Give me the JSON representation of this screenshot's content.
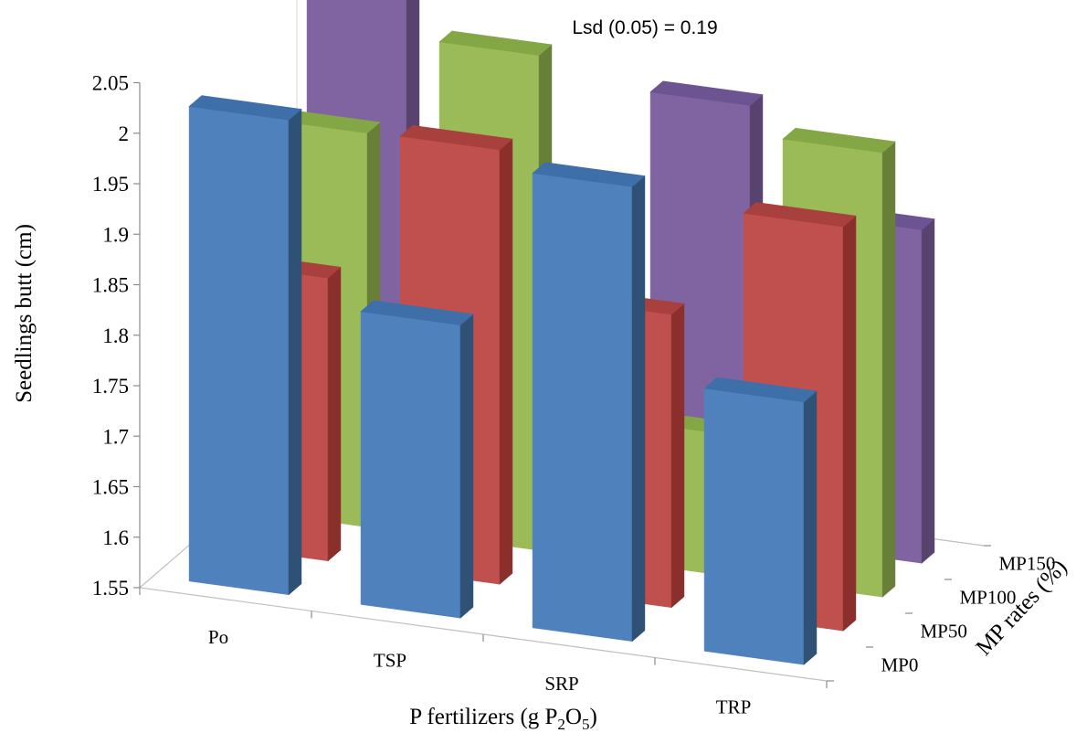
{
  "chart_data": {
    "type": "bar",
    "subtype": "3d-column",
    "title": "",
    "annotation": "Lsd (0.05) = 0.19",
    "ylabel": "Seedlings butt (cm)",
    "xlabel_parts": {
      "main": "P fertilizers (g P",
      "sub1": "2",
      "mid": "O",
      "sub2": "5",
      "end": ")"
    },
    "zlabel": "MP rates (%)",
    "ylim": [
      1.55,
      2.05
    ],
    "y_ticks": [
      "1.55",
      "1.6",
      "1.65",
      "1.7",
      "1.75",
      "1.8",
      "1.85",
      "1.9",
      "1.95",
      "2",
      "2.05"
    ],
    "categories": [
      "Po",
      "TSP",
      "SRP",
      "TRP"
    ],
    "grid": false,
    "series": [
      {
        "name": "MP0",
        "colors": {
          "front": "#4F81BD",
          "side": "#2F5176",
          "top": "#3E6FA8"
        },
        "values": [
          2.02,
          1.84,
          2.0,
          1.81
        ]
      },
      {
        "name": "MP50",
        "colors": {
          "front": "#C0504D",
          "side": "#8B2F2D",
          "top": "#A8403D"
        },
        "values": [
          1.83,
          1.98,
          1.84,
          1.95
        ]
      },
      {
        "name": "MP100",
        "colors": {
          "front": "#9BBB59",
          "side": "#687F38",
          "top": "#84A745"
        },
        "values": [
          1.94,
          2.04,
          1.69,
          1.99
        ]
      },
      {
        "name": "MP150",
        "colors": {
          "front": "#8064A2",
          "side": "#58436E",
          "top": "#6C5391"
        },
        "values": [
          2.05,
          1.77,
          1.98,
          1.88
        ]
      }
    ]
  }
}
